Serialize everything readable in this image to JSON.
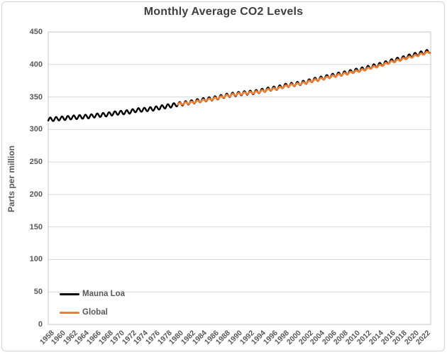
{
  "title": "Monthly Average CO2 Levels",
  "y_axis": {
    "title": "Parts per million",
    "ticks": [
      0,
      50,
      100,
      150,
      200,
      250,
      300,
      350,
      400,
      450
    ],
    "range": [
      0,
      450
    ]
  },
  "x_axis": {
    "tick_labels": [
      "1958",
      "1960",
      "1962",
      "1964",
      "1966",
      "1968",
      "1970",
      "1972",
      "1974",
      "1976",
      "1978",
      "1980",
      "1982",
      "1984",
      "1986",
      "1988",
      "1990",
      "1992",
      "1994",
      "1996",
      "1998",
      "2000",
      "2002",
      "2004",
      "2006",
      "2008",
      "2010",
      "2012",
      "2014",
      "2016",
      "2018",
      "2020",
      "2022"
    ],
    "tick_step_years": 2,
    "range": [
      "1958",
      "2022"
    ]
  },
  "legend": {
    "position": "inside-bottom-left",
    "items": [
      {
        "label": "Mauna Loa",
        "color": "#000000"
      },
      {
        "label": "Global",
        "color": "#ED7D31"
      }
    ]
  },
  "colors": {
    "title_text": "#404040",
    "axis_text": "#595959",
    "gridline": "#d9d9d9",
    "plot_border": "#c6c6c6",
    "mauna_loa_series": "#000000",
    "global_series": "#ED7D31",
    "background": "#ffffff",
    "frame_border": "#d4d4d4"
  },
  "chart_data": {
    "type": "line",
    "title": "Monthly Average CO2 Levels",
    "xlabel": "",
    "ylabel": "Parts per million",
    "ylim": [
      0,
      450
    ],
    "xlim": [
      1958,
      2023
    ],
    "grid": "horizontal",
    "legend_position": "inside-bottom-left",
    "resolution": "monthly values; annual means listed with seasonal cycle superimposed",
    "series": [
      {
        "name": "Mauna Loa",
        "color": "#000000",
        "start_year": 1958,
        "end_year": 2022,
        "seasonal_amplitude_ppm": 3.0,
        "annual_means_ppm": [
          315.2,
          316.0,
          316.9,
          317.6,
          318.5,
          319.0,
          319.6,
          320.0,
          321.4,
          322.2,
          323.0,
          324.6,
          325.7,
          326.3,
          327.5,
          329.7,
          330.2,
          331.1,
          332.0,
          333.8,
          335.4,
          336.8,
          338.8,
          340.1,
          341.5,
          343.2,
          344.9,
          346.3,
          347.6,
          349.3,
          351.7,
          353.2,
          354.4,
          355.7,
          356.5,
          357.2,
          359.0,
          361.0,
          362.7,
          363.9,
          366.8,
          368.5,
          369.7,
          371.3,
          373.4,
          376.0,
          377.7,
          380.0,
          382.1,
          384.0,
          385.8,
          387.6,
          390.1,
          391.8,
          394.1,
          396.7,
          398.8,
          401.0,
          404.4,
          406.8,
          408.7,
          411.7,
          414.2,
          416.4,
          418.6
        ]
      },
      {
        "name": "Global",
        "color": "#ED7D31",
        "start_year": 1980,
        "end_year": 2022,
        "seasonal_amplitude_ppm": 1.7,
        "annual_means_ppm": [
          338.9,
          340.1,
          340.9,
          342.5,
          344.1,
          345.5,
          347.0,
          348.7,
          351.2,
          352.8,
          354.1,
          355.4,
          356.1,
          356.8,
          358.3,
          360.2,
          361.9,
          363.0,
          365.7,
          367.8,
          369.0,
          370.6,
          372.6,
          375.1,
          377.0,
          379.0,
          381.2,
          382.9,
          385.0,
          386.5,
          388.8,
          390.6,
          392.7,
          395.4,
          397.3,
          399.7,
          403.1,
          405.2,
          407.6,
          410.1,
          412.4,
          414.7,
          417.1
        ]
      }
    ]
  }
}
